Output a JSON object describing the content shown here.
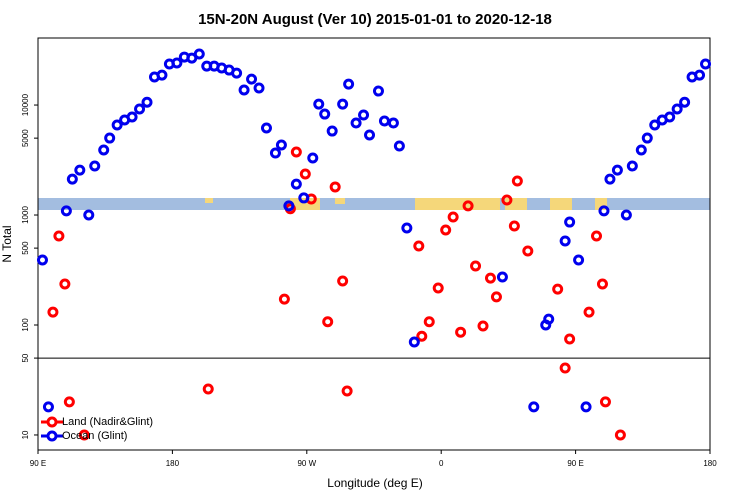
{
  "chart_data": {
    "type": "scatter",
    "title": "15N-20N August (Ver 10)   2015-01-01 to 2020-12-18",
    "x_label": "Longitude (deg E)",
    "y_label": "N Total",
    "xlim": [
      90,
      540
    ],
    "ylim": [
      7.3,
      40700
    ],
    "y_scale": "log",
    "xticks": [
      {
        "value": 90,
        "label": "90 E"
      },
      {
        "value": 180,
        "label": "180"
      },
      {
        "value": 270,
        "label": "90 W"
      },
      {
        "value": 360,
        "label": "0"
      },
      {
        "value": 450,
        "label": "90 E"
      },
      {
        "value": 540,
        "label": "180"
      }
    ],
    "yticks": [
      10,
      50,
      100,
      500,
      1000,
      5000,
      10000
    ],
    "hline": 50,
    "legend_position": "bottom-left",
    "series": [
      {
        "name": "Land (Nadir&Glint)",
        "color": "#ff0000",
        "x": [
          100,
          104,
          108,
          111,
          121,
          204,
          255,
          259,
          263,
          269,
          273,
          284,
          289,
          294,
          297,
          345,
          347,
          352,
          358,
          363,
          368,
          373,
          378,
          383,
          388,
          393,
          397,
          404,
          409,
          411,
          418,
          438,
          443,
          446,
          459,
          464,
          468,
          470,
          480
        ],
        "values": [
          131,
          644,
          236,
          20,
          10,
          26.2,
          172,
          1140,
          3740,
          2360,
          1400,
          107,
          1800,
          251,
          25.1,
          523,
          79,
          107,
          217,
          731,
          959,
          86,
          1210,
          344,
          98,
          267,
          180,
          1370,
          795,
          2040,
          471,
          212,
          40.6,
          74.6,
          131,
          644,
          236,
          20,
          10
        ]
      },
      {
        "name": "Ocean (Glint)",
        "color": "#0000ee",
        "x": [
          93,
          97,
          109,
          113,
          118,
          124,
          128,
          134,
          138,
          143,
          148,
          153,
          158,
          163,
          168,
          173,
          178,
          183,
          188,
          193,
          198,
          203,
          208,
          213,
          218,
          223,
          228,
          233,
          238,
          243,
          249,
          253,
          258,
          263,
          268,
          274,
          278,
          282,
          287,
          294,
          298,
          303,
          308,
          312,
          318,
          322,
          328,
          332,
          337,
          342,
          401,
          422,
          430,
          432,
          443,
          446,
          452,
          457,
          469,
          473,
          478,
          484,
          488,
          494,
          498,
          503,
          508,
          513,
          518,
          523,
          528,
          533,
          537
        ],
        "values": [
          390,
          18,
          1090,
          2120,
          2560,
          1000,
          2790,
          3900,
          5010,
          6580,
          7310,
          7780,
          9200,
          10600,
          18000,
          18700,
          23600,
          24100,
          27300,
          26700,
          29100,
          22600,
          22600,
          21700,
          20800,
          19500,
          13700,
          17200,
          14300,
          6180,
          3660,
          4330,
          1210,
          1910,
          1430,
          3300,
          10200,
          8280,
          5800,
          10200,
          15500,
          6860,
          8110,
          5340,
          13400,
          7160,
          6860,
          4240,
          762,
          70,
          273,
          18,
          100,
          113,
          581,
          863,
          390,
          18,
          1090,
          2120,
          2560,
          1000,
          2790,
          3900,
          5010,
          6580,
          7310,
          7780,
          9200,
          10600,
          18000,
          18700,
          23600
        ]
      }
    ]
  }
}
